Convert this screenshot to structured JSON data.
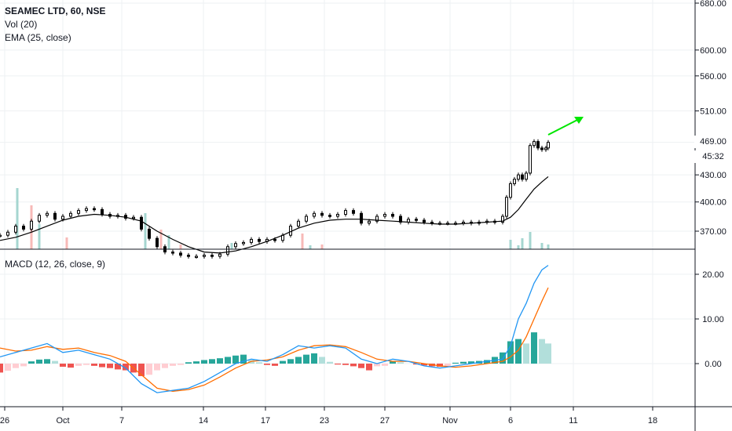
{
  "legend": {
    "symbol": "SEAMEC LTD, 60, NSE",
    "volume": "Vol (20)",
    "ema": "EMA (25, close)",
    "macd": "MACD (12, 26, close, 9)"
  },
  "price_badges": {
    "last_price": "469.00",
    "countdown": "45:32"
  },
  "colors": {
    "candle": "#000000",
    "ema": "#000000",
    "macd_line": "#2196f3",
    "signal_line": "#ff6d00",
    "hist_up_strong": "#26a69a",
    "hist_up_weak": "#b2dfdb",
    "hist_down_strong": "#ef5350",
    "hist_down_weak": "#ffcdd2",
    "vol_up": "#a5d6d0",
    "vol_down": "#f7b9b7",
    "arrow": "#00e600",
    "grid": "#eef0f3"
  },
  "chart_data": [
    {
      "type": "candlestick",
      "title": "SEAMEC LTD, 60, NSE",
      "y_scale": "log",
      "ylim": [
        340,
        690
      ],
      "y_ticks": [
        "680.00",
        "600.00",
        "560.00",
        "510.00",
        "469.00",
        "430.00",
        "400.00",
        "370.00"
      ],
      "x_ticks": [
        "26",
        "Oct",
        "7",
        "14",
        "17",
        "23",
        "27",
        "Nov",
        "6",
        "11",
        "18"
      ],
      "grid": true,
      "series": [
        {
          "name": "EMA (25, close)",
          "x": [
            0,
            20,
            40,
            60,
            80,
            100,
            120,
            140,
            160,
            180,
            200,
            220,
            240,
            260,
            280,
            300,
            320,
            340,
            360,
            380,
            400,
            420,
            440,
            460,
            480,
            500,
            520,
            540,
            560,
            580,
            600,
            620,
            640,
            650,
            660,
            670,
            680,
            690,
            698
          ],
          "values": [
            361,
            364,
            369,
            375,
            381,
            385,
            387,
            386,
            384,
            380,
            370,
            362,
            355,
            350,
            349,
            351,
            355,
            360,
            366,
            373,
            378,
            381,
            382,
            382,
            381,
            380,
            379,
            378,
            377,
            377,
            378,
            379,
            380,
            384,
            392,
            403,
            414,
            422,
            428
          ]
        },
        {
          "name": "close",
          "x": [
            0,
            10,
            20,
            30,
            40,
            50,
            60,
            70,
            80,
            90,
            100,
            110,
            120,
            130,
            140,
            150,
            160,
            170,
            180,
            190,
            200,
            210,
            220,
            230,
            240,
            250,
            260,
            270,
            280,
            290,
            300,
            310,
            320,
            330,
            340,
            350,
            360,
            370,
            380,
            390,
            400,
            410,
            420,
            430,
            440,
            450,
            460,
            470,
            480,
            490,
            500,
            510,
            520,
            530,
            540,
            550,
            560,
            570,
            580,
            590,
            600,
            610,
            620,
            630,
            640,
            645,
            650,
            655,
            660,
            665,
            670,
            675,
            680,
            685,
            690,
            695,
            698
          ],
          "values": [
            366,
            369,
            375,
            372,
            380,
            386,
            388,
            382,
            385,
            388,
            391,
            393,
            392,
            387,
            385,
            386,
            383,
            384,
            372,
            363,
            355,
            350,
            349,
            347,
            346,
            346,
            347,
            346,
            348,
            355,
            358,
            359,
            362,
            360,
            362,
            361,
            366,
            375,
            380,
            385,
            388,
            386,
            385,
            387,
            391,
            388,
            378,
            380,
            385,
            387,
            385,
            379,
            382,
            381,
            379,
            378,
            378,
            378,
            378,
            379,
            378,
            379,
            380,
            379,
            385,
            405,
            420,
            425,
            430,
            425,
            432,
            465,
            470,
            462,
            460,
            462,
            469
          ]
        }
      ],
      "volume": {
        "name": "Vol (20)",
        "x": [
          22,
          40,
          50,
          85,
          185,
          205,
          215,
          230,
          295,
          385,
          395,
          410,
          650,
          660,
          665,
          675,
          690,
          698
        ],
        "values": [
          78,
          56,
          32,
          15,
          46,
          25,
          18,
          6,
          8,
          20,
          5,
          6,
          12,
          5,
          14,
          22,
          8,
          6
        ]
      }
    },
    {
      "type": "line",
      "title": "MACD (12, 26, close, 9)",
      "ylim": [
        -10,
        23
      ],
      "y_ticks": [
        "20.00",
        "10.00",
        "0.00"
      ],
      "grid": true,
      "series": [
        {
          "name": "MACD",
          "x": [
            0,
            20,
            40,
            60,
            80,
            100,
            120,
            140,
            160,
            180,
            200,
            220,
            240,
            260,
            280,
            300,
            320,
            340,
            360,
            380,
            400,
            420,
            440,
            460,
            480,
            500,
            520,
            540,
            560,
            580,
            600,
            620,
            640,
            650,
            660,
            670,
            680,
            690,
            698
          ],
          "values": [
            1.5,
            2.5,
            3.5,
            4.5,
            2.5,
            3.0,
            2.0,
            1.0,
            -1.0,
            -4.5,
            -6.5,
            -6.0,
            -5.5,
            -4.0,
            -2.0,
            0.0,
            1.0,
            0.5,
            2.0,
            4.0,
            3.5,
            4.0,
            3.5,
            1.0,
            0.0,
            1.0,
            0.5,
            -0.5,
            -1.0,
            -0.5,
            0.0,
            0.5,
            1.0,
            4.0,
            10.0,
            13.5,
            18.0,
            21.0,
            22.0
          ]
        },
        {
          "name": "Signal",
          "x": [
            0,
            20,
            40,
            60,
            80,
            100,
            120,
            140,
            160,
            180,
            200,
            220,
            240,
            260,
            280,
            300,
            320,
            340,
            360,
            380,
            400,
            420,
            440,
            460,
            480,
            500,
            520,
            540,
            560,
            580,
            600,
            620,
            640,
            650,
            660,
            670,
            680,
            690,
            698
          ],
          "values": [
            3.5,
            2.8,
            3.0,
            3.8,
            3.2,
            3.5,
            2.5,
            1.8,
            0.5,
            -2.5,
            -5.5,
            -6.2,
            -5.8,
            -4.8,
            -3.0,
            -1.0,
            0.5,
            0.8,
            1.5,
            3.0,
            4.0,
            4.2,
            3.8,
            2.5,
            1.0,
            0.5,
            0.5,
            0.0,
            -0.5,
            -0.8,
            -0.5,
            0.0,
            0.5,
            1.5,
            3.0,
            6.0,
            10.0,
            14.0,
            17.0
          ]
        }
      ],
      "histogram": {
        "name": "Histogram",
        "x": [
          0,
          10,
          20,
          30,
          40,
          50,
          60,
          70,
          80,
          90,
          100,
          110,
          120,
          130,
          140,
          150,
          160,
          170,
          180,
          190,
          200,
          210,
          220,
          230,
          240,
          250,
          260,
          270,
          280,
          290,
          300,
          310,
          320,
          330,
          340,
          350,
          360,
          370,
          380,
          390,
          400,
          410,
          420,
          430,
          440,
          450,
          460,
          470,
          480,
          490,
          500,
          510,
          520,
          530,
          540,
          550,
          560,
          570,
          580,
          590,
          600,
          610,
          620,
          630,
          640,
          650,
          660,
          670,
          680,
          690,
          698
        ],
        "values": [
          -2.0,
          -1.6,
          -1.0,
          -0.6,
          0.5,
          0.9,
          1.0,
          0.6,
          -0.7,
          -0.9,
          -0.5,
          -0.3,
          -0.5,
          -0.8,
          -1.0,
          -1.3,
          -1.5,
          -2.0,
          -2.8,
          -2.5,
          -1.5,
          -1.0,
          -0.5,
          -0.3,
          0.3,
          0.5,
          0.8,
          1.0,
          1.2,
          1.5,
          1.8,
          2.0,
          0.8,
          0.3,
          -0.3,
          -0.5,
          0.6,
          1.0,
          1.5,
          2.0,
          2.3,
          1.5,
          0.4,
          -0.2,
          -0.3,
          -0.6,
          -1.0,
          -1.5,
          -0.6,
          -0.5,
          0.5,
          0.3,
          0.0,
          -0.2,
          -0.4,
          -0.6,
          -0.7,
          -0.6,
          0.2,
          0.4,
          0.5,
          0.6,
          0.8,
          1.5,
          2.5,
          5.0,
          5.5,
          4.5,
          7.0,
          5.5,
          4.5
        ]
      }
    }
  ]
}
